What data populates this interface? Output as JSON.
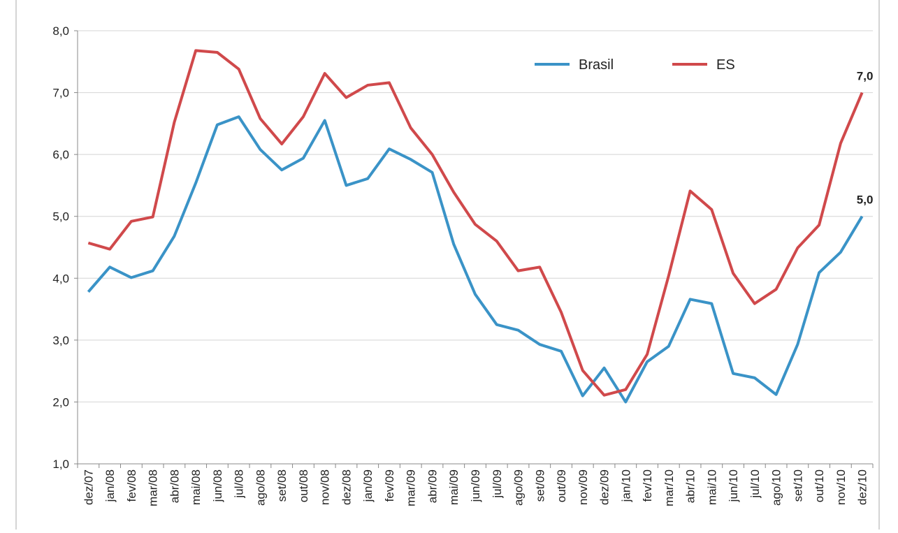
{
  "chart_data": {
    "type": "line",
    "categories": [
      "dez/07",
      "jan/08",
      "fev/08",
      "mar/08",
      "abr/08",
      "mai/08",
      "jun/08",
      "jul/08",
      "ago/08",
      "set/08",
      "out/08",
      "nov/08",
      "dez/08",
      "jan/09",
      "fev/09",
      "mar/09",
      "abr/09",
      "mai/09",
      "jun/09",
      "jul/09",
      "ago/09",
      "set/09",
      "out/09",
      "nov/09",
      "dez/09",
      "jan/10",
      "fev/10",
      "mar/10",
      "abr/10",
      "mai/10",
      "jun/10",
      "jul/10",
      "ago/10",
      "set/10",
      "out/10",
      "nov/10",
      "dez/10"
    ],
    "series": [
      {
        "name": "Brasil",
        "color": "#3a93c7",
        "values": [
          3.78,
          4.18,
          4.01,
          4.12,
          4.68,
          5.54,
          6.48,
          6.61,
          6.08,
          5.75,
          5.94,
          6.55,
          5.5,
          5.61,
          6.09,
          5.92,
          5.71,
          4.55,
          3.74,
          3.25,
          3.16,
          2.93,
          2.82,
          2.1,
          2.55,
          2.0,
          2.65,
          2.9,
          3.66,
          3.59,
          2.46,
          2.39,
          2.12,
          2.93,
          4.09,
          4.42,
          5.0
        ],
        "value_labels": [
          null,
          null,
          null,
          null,
          null,
          null,
          null,
          null,
          null,
          null,
          null,
          null,
          null,
          null,
          null,
          null,
          null,
          null,
          null,
          null,
          null,
          null,
          null,
          null,
          null,
          null,
          null,
          null,
          null,
          null,
          null,
          null,
          null,
          null,
          null,
          null,
          "5,0"
        ]
      },
      {
        "name": "ES",
        "color": "#d0494b",
        "values": [
          4.57,
          4.47,
          4.92,
          4.99,
          6.52,
          7.68,
          7.65,
          7.38,
          6.58,
          6.17,
          6.61,
          7.31,
          6.92,
          7.12,
          7.16,
          6.43,
          6.0,
          5.39,
          4.87,
          4.6,
          4.12,
          4.18,
          3.45,
          2.51,
          2.11,
          2.2,
          2.77,
          4.04,
          5.41,
          5.11,
          4.08,
          3.59,
          3.82,
          4.49,
          4.86,
          6.18,
          7.0
        ],
        "value_labels": [
          null,
          null,
          null,
          null,
          null,
          null,
          null,
          null,
          null,
          null,
          null,
          null,
          null,
          null,
          null,
          null,
          null,
          null,
          null,
          null,
          null,
          null,
          null,
          null,
          null,
          null,
          null,
          null,
          null,
          null,
          null,
          null,
          null,
          null,
          null,
          null,
          "7,0"
        ]
      }
    ],
    "ylim": [
      1,
      8
    ],
    "yticks": [
      {
        "value": 1,
        "label": "1,0"
      },
      {
        "value": 2,
        "label": "2,0"
      },
      {
        "value": 3,
        "label": "3,0"
      },
      {
        "value": 4,
        "label": "4,0"
      },
      {
        "value": 5,
        "label": "5,0"
      },
      {
        "value": 6,
        "label": "6,0"
      },
      {
        "value": 7,
        "label": "7,0"
      },
      {
        "value": 8,
        "label": "8,0"
      }
    ],
    "grid": true,
    "legend": "top-right"
  }
}
